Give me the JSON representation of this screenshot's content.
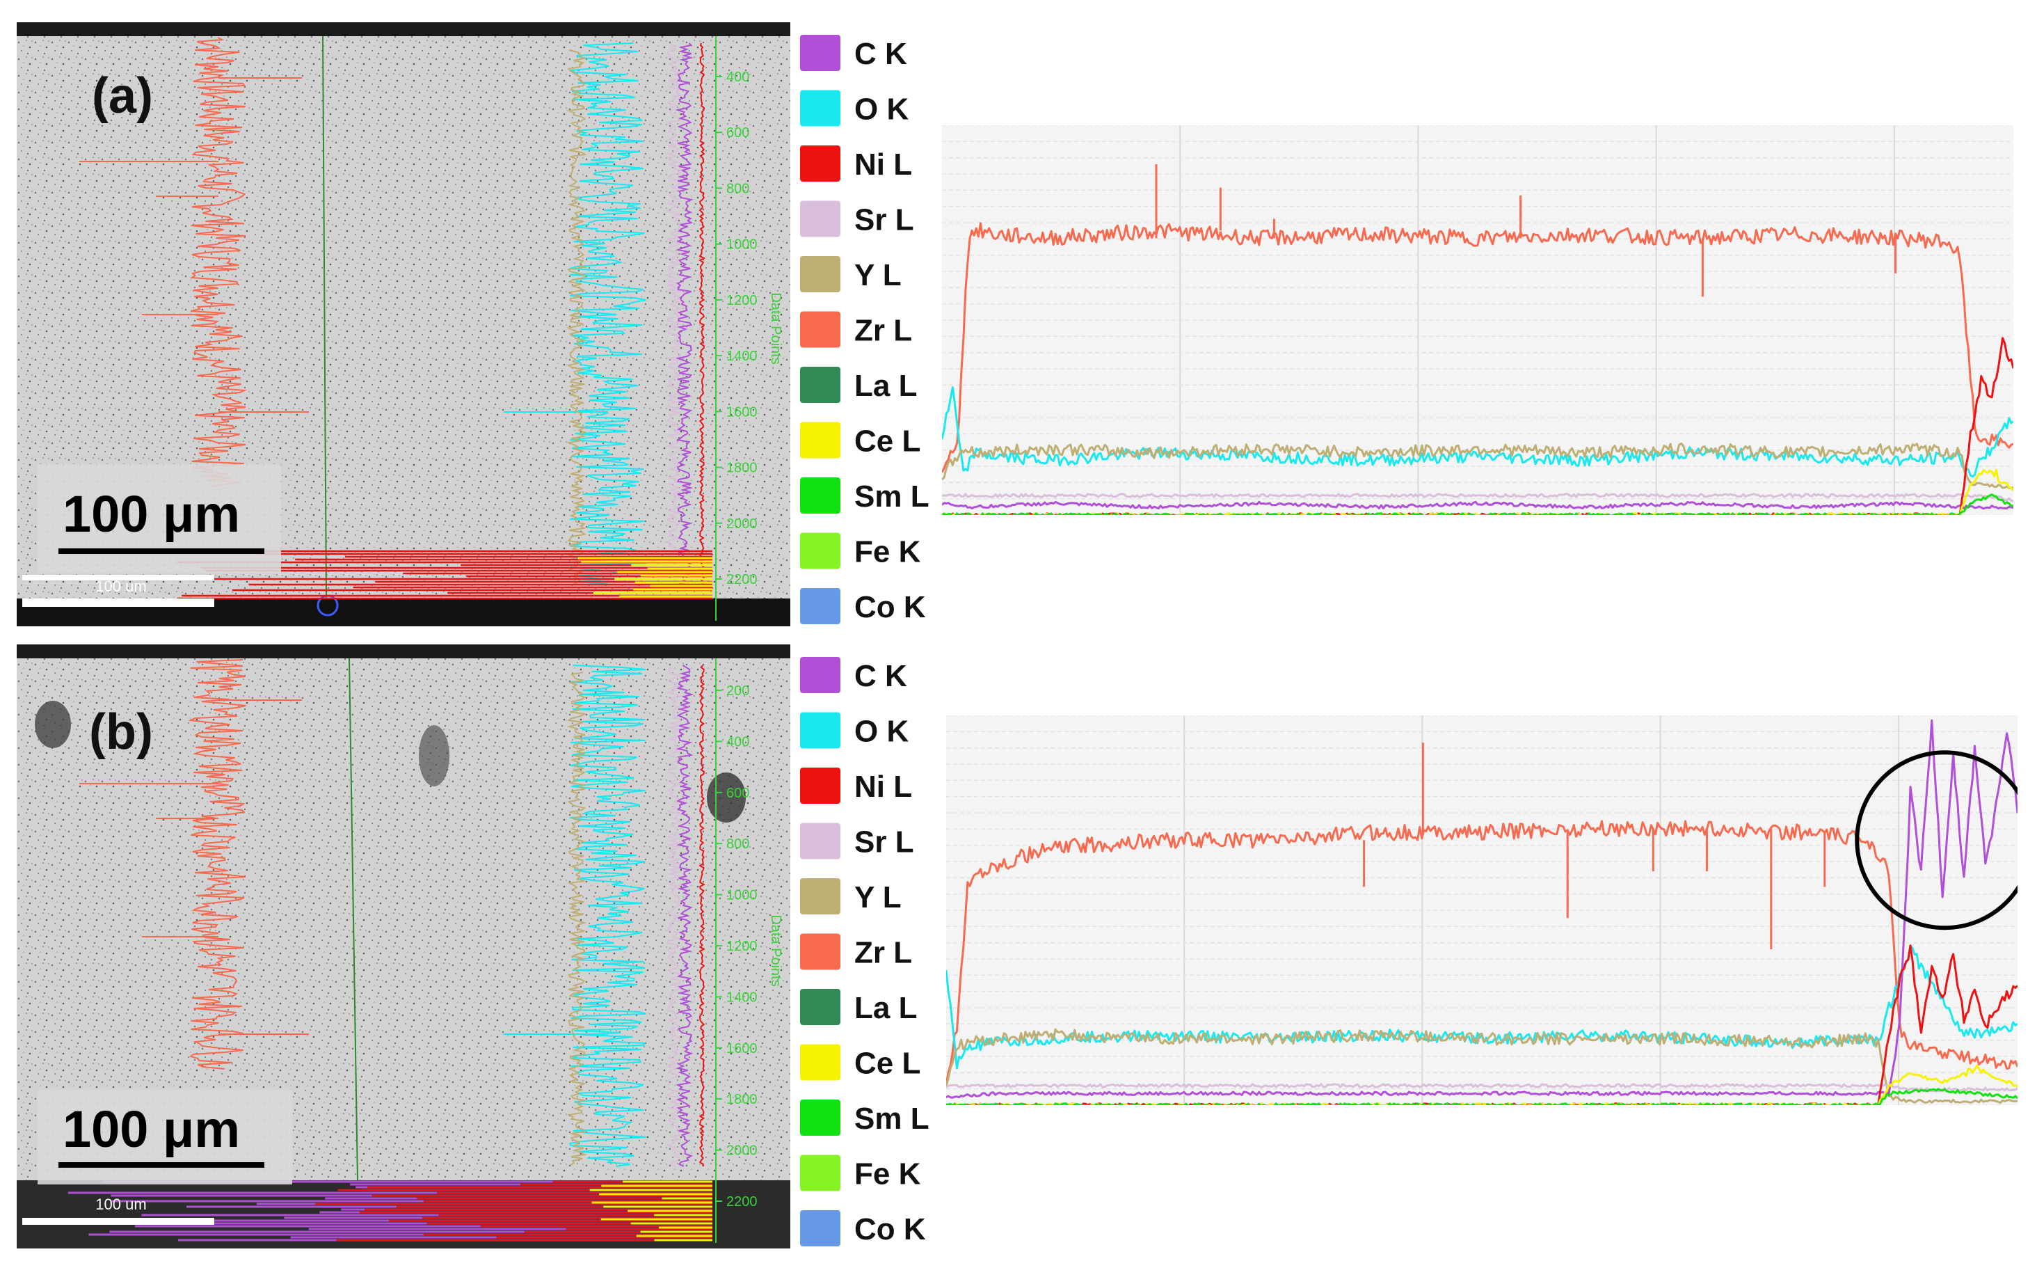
{
  "panels": [
    {
      "label": "(a)",
      "scale_bar": "100 μm",
      "scale_bar_small": "100 um",
      "data_points_axis_title": "Data Points",
      "data_points_ticks": [
        "400",
        "600",
        "800",
        "1000",
        "1200",
        "1400",
        "1600",
        "1800",
        "2000",
        "2200"
      ],
      "circle_highlight": false
    },
    {
      "label": "(b)",
      "scale_bar": "100 μm",
      "scale_bar_small": "100 um",
      "data_points_axis_title": "Data Points",
      "data_points_ticks": [
        "200",
        "400",
        "600",
        "800",
        "1000",
        "1200",
        "1400",
        "1600",
        "1800",
        "2000",
        "2200"
      ],
      "circle_highlight": true
    }
  ],
  "legend": [
    {
      "label": "C  K",
      "color": "#b04fd8"
    },
    {
      "label": "O  K",
      "color": "#19e8f0"
    },
    {
      "label": "Ni L",
      "color": "#ee1111"
    },
    {
      "label": "Sr L",
      "color": "#d9bfd9"
    },
    {
      "label": "Y  L",
      "color": "#bfae73"
    },
    {
      "label": "Zr L",
      "color": "#f86a4f"
    },
    {
      "label": "La L",
      "color": "#2f8a55"
    },
    {
      "label": "Ce L",
      "color": "#f7f200"
    },
    {
      "label": "Sm L",
      "color": "#11e011"
    },
    {
      "label": "Fe K",
      "color": "#88f322"
    },
    {
      "label": "Co K",
      "color": "#6899e8"
    }
  ],
  "chart_data": [
    {
      "type": "line",
      "panel": "(a)",
      "x_range": [
        0,
        100
      ],
      "y_range": [
        0,
        100
      ],
      "grid": true,
      "series": [
        {
          "name": "Zr L",
          "color": "#f86a4f",
          "x": [
            0,
            1.5,
            2.5,
            3.5,
            5,
            10,
            20,
            30,
            40,
            50,
            60,
            70,
            80,
            90,
            94,
            95,
            96.5,
            100
          ],
          "values": [
            10,
            20,
            72,
            73,
            72,
            71,
            73,
            71,
            72,
            71,
            72,
            71,
            72,
            71,
            70,
            66,
            20,
            18
          ],
          "spikes": [
            [
              20,
              90
            ],
            [
              26,
              84
            ],
            [
              31,
              76
            ],
            [
              54,
              82
            ],
            [
              71,
              56
            ],
            [
              89,
              62
            ]
          ]
        },
        {
          "name": "O  K",
          "color": "#19e8f0",
          "x": [
            0,
            1,
            2,
            3,
            5,
            10,
            20,
            30,
            40,
            50,
            60,
            70,
            80,
            90,
            95,
            96,
            100
          ],
          "values": [
            20,
            32,
            10,
            16,
            15,
            14,
            16,
            15,
            14,
            15,
            14,
            16,
            15,
            14,
            15,
            10,
            25
          ]
        },
        {
          "name": "Y  L",
          "color": "#bfae73",
          "x": [
            0,
            2,
            3,
            10,
            20,
            30,
            40,
            50,
            60,
            70,
            80,
            90,
            95,
            96,
            100
          ],
          "values": [
            10,
            17,
            16,
            17,
            16,
            17,
            16,
            17,
            16,
            17,
            16,
            17,
            16,
            8,
            7
          ]
        },
        {
          "name": "C  K",
          "color": "#b04fd8",
          "x": [
            0,
            3,
            10,
            20,
            30,
            40,
            50,
            60,
            70,
            80,
            90,
            95,
            96,
            100
          ],
          "values": [
            3,
            2,
            3,
            2,
            3,
            2,
            3,
            2,
            3,
            2,
            3,
            2,
            2,
            2
          ]
        },
        {
          "name": "Sr L",
          "color": "#d9bfd9",
          "x": [
            0,
            3,
            10,
            20,
            30,
            40,
            50,
            60,
            70,
            80,
            90,
            95,
            96,
            100
          ],
          "values": [
            5,
            5,
            5,
            5,
            5,
            5,
            5,
            5,
            5,
            5,
            5,
            5,
            5,
            4
          ]
        },
        {
          "name": "Ni L",
          "color": "#ee1111",
          "x": [
            0,
            95,
            96,
            97,
            98,
            99,
            100
          ],
          "values": [
            0,
            0,
            20,
            35,
            30,
            45,
            38
          ]
        },
        {
          "name": "Ce L",
          "color": "#f7f200",
          "x": [
            0,
            95,
            96,
            98,
            100
          ],
          "values": [
            0,
            0,
            8,
            12,
            6
          ]
        },
        {
          "name": "Sm L",
          "color": "#11e011",
          "x": [
            0,
            95,
            96,
            98,
            100
          ],
          "values": [
            0,
            0,
            3,
            5,
            2
          ]
        }
      ]
    },
    {
      "type": "line",
      "panel": "(b)",
      "x_range": [
        0,
        100
      ],
      "y_range": [
        0,
        100
      ],
      "grid": true,
      "series": [
        {
          "name": "Zr L",
          "color": "#f86a4f",
          "x": [
            0,
            1,
            2,
            3,
            5,
            10,
            20,
            30,
            40,
            50,
            60,
            70,
            80,
            86,
            87,
            88,
            89,
            90,
            100
          ],
          "values": [
            5,
            20,
            56,
            60,
            62,
            66,
            68,
            68,
            70,
            70,
            71,
            71,
            70,
            68,
            65,
            60,
            20,
            15,
            10
          ],
          "spikes": [
            [
              44.5,
              93
            ],
            [
              39,
              56
            ],
            [
              58,
              48
            ],
            [
              77,
              40
            ],
            [
              82,
              56
            ],
            [
              71,
              60
            ],
            [
              66,
              60
            ]
          ]
        },
        {
          "name": "O  K",
          "color": "#19e8f0",
          "x": [
            0,
            1,
            2,
            5,
            10,
            20,
            30,
            40,
            50,
            60,
            70,
            80,
            86,
            87,
            88,
            90,
            95,
            100
          ],
          "values": [
            35,
            10,
            15,
            16,
            17,
            18,
            17,
            18,
            17,
            18,
            17,
            16,
            17,
            16,
            25,
            40,
            18,
            20
          ]
        },
        {
          "name": "Y  L",
          "color": "#bfae73",
          "x": [
            0,
            1,
            2,
            5,
            10,
            20,
            30,
            40,
            50,
            60,
            70,
            80,
            86,
            87,
            88,
            90,
            100
          ],
          "values": [
            5,
            15,
            16,
            17,
            18,
            17,
            17,
            18,
            17,
            17,
            17,
            16,
            17,
            16,
            2,
            1,
            1
          ]
        },
        {
          "name": "C  K",
          "color": "#b04fd8",
          "x": [
            0,
            5,
            10,
            20,
            30,
            40,
            50,
            60,
            70,
            80,
            86,
            87,
            88,
            89,
            90,
            91,
            92,
            93,
            94,
            95,
            96,
            97,
            98,
            99,
            100
          ],
          "values": [
            2,
            3,
            3,
            3,
            3,
            3,
            3,
            3,
            3,
            3,
            3,
            3,
            3,
            20,
            80,
            60,
            98,
            55,
            90,
            58,
            92,
            62,
            76,
            96,
            75
          ]
        },
        {
          "name": "Sr L",
          "color": "#d9bfd9",
          "x": [
            0,
            5,
            10,
            20,
            30,
            40,
            50,
            60,
            70,
            80,
            86,
            87,
            88,
            90,
            100
          ],
          "values": [
            5,
            5,
            5,
            5,
            5,
            5,
            5,
            5,
            5,
            5,
            5,
            5,
            5,
            4,
            4
          ]
        },
        {
          "name": "Ni L",
          "color": "#ee1111",
          "x": [
            0,
            86,
            87,
            88,
            89,
            90,
            91,
            92,
            93,
            94,
            95,
            96,
            97,
            98,
            99,
            100
          ],
          "values": [
            0,
            0,
            0,
            18,
            32,
            40,
            20,
            35,
            28,
            38,
            22,
            30,
            20,
            25,
            28,
            30
          ]
        },
        {
          "name": "Ce L",
          "color": "#f7f200",
          "x": [
            0,
            87,
            88,
            90,
            93,
            96,
            100
          ],
          "values": [
            0,
            0,
            5,
            8,
            6,
            9,
            5
          ]
        },
        {
          "name": "Sm L",
          "color": "#11e011",
          "x": [
            0,
            87,
            88,
            92,
            96,
            100
          ],
          "values": [
            0,
            0,
            3,
            4,
            3,
            2
          ]
        }
      ]
    }
  ]
}
